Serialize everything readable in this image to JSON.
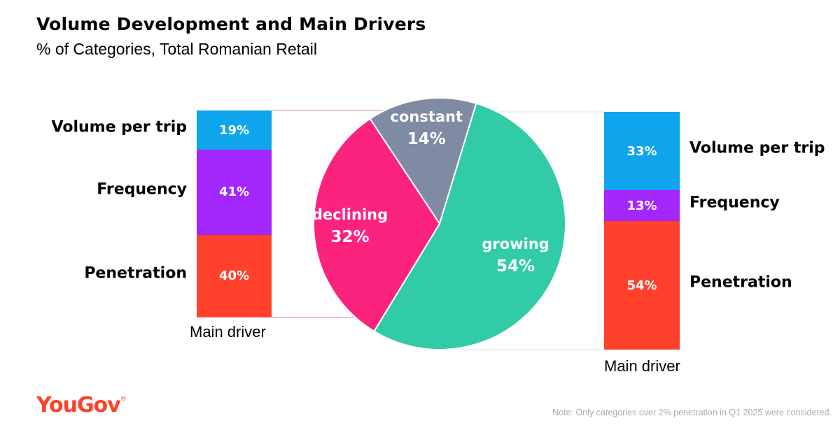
{
  "title": "Volume Development and Main Drivers",
  "subtitle": "% of Categories, Total Romanian Retail",
  "chart_data": [
    {
      "type": "pie",
      "name": "volume-development",
      "slices": [
        {
          "label": "constant",
          "value": 14,
          "display": "14%",
          "color": "#7e8ba3"
        },
        {
          "label": "growing",
          "value": 54,
          "display": "54%",
          "color": "#31cba7"
        },
        {
          "label": "declining",
          "value": 32,
          "display": "32%",
          "color": "#fc237f"
        }
      ]
    },
    {
      "type": "bar",
      "name": "declining-main-driver",
      "stacked": true,
      "xlabel": "Main driver",
      "segments": [
        {
          "label": "Volume per trip",
          "value": 19,
          "display": "19%",
          "color": "#0ea5ec"
        },
        {
          "label": "Frequency",
          "value": 41,
          "display": "41%",
          "color": "#a326fb"
        },
        {
          "label": "Penetration",
          "value": 40,
          "display": "40%",
          "color": "#ff412c"
        }
      ]
    },
    {
      "type": "bar",
      "name": "growing-main-driver",
      "stacked": true,
      "xlabel": "Main driver",
      "segments": [
        {
          "label": "Volume per trip",
          "value": 33,
          "display": "33%",
          "color": "#0ea5ec"
        },
        {
          "label": "Frequency",
          "value": 13,
          "display": "13%",
          "color": "#a326fb"
        },
        {
          "label": "Penetration",
          "value": 54,
          "display": "54%",
          "color": "#ff412c"
        }
      ]
    }
  ],
  "connector_color": "#d0e6e0",
  "logo": {
    "text": "YouGov",
    "mark": "®"
  },
  "note": "Note: Only categories over 2% penetration in Q1 2025 were considered."
}
